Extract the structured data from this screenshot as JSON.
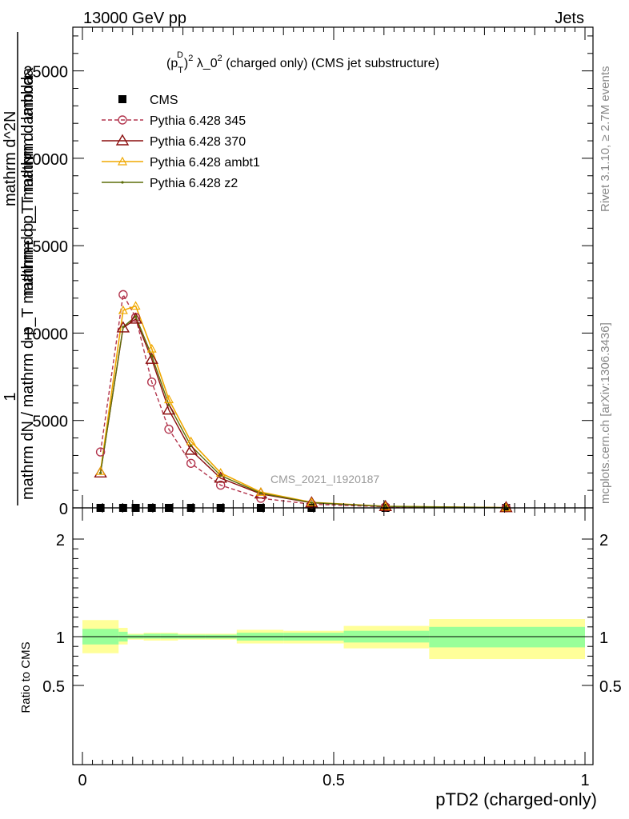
{
  "header": {
    "left": "13000 GeV pp",
    "right": "Jets"
  },
  "side_labels": {
    "rivet": "Rivet 3.1.10, ≥ 2.7M events",
    "mcplots": "mcplots.cern.ch [arXiv:1306.3436]"
  },
  "colors": {
    "cms": "#000000",
    "p345": "#b3364e",
    "p370": "#8b0f0f",
    "ambt1": "#f0a800",
    "z2": "#5d6e0a",
    "band_inner": "#99ff99",
    "band_outer": "#ffff99"
  },
  "chart_data": [
    {
      "type": "line",
      "title": "(p_T^D)^2 λ_0^2 (charged only) (CMS jet substructure)",
      "title_parts": {
        "p": "(p",
        "sub": "T",
        "sup1": "D",
        "close": ")",
        "sup2": "2",
        "lam": " λ_0",
        "sup3": "2",
        "rest": " (charged only) (CMS jet substructure)"
      },
      "ylabel_lines": [
        "1",
        "mathrm dN / mathrm d p_T mathrm d p_T mathrm d lambda",
        "mathrm d^2N",
        "mathrm d p_T mathrm d lambda"
      ],
      "watermark": "CMS_2021_I1920187",
      "xlim": [
        0,
        1
      ],
      "ylim": [
        0,
        27500
      ],
      "yticks": [
        0,
        5000,
        10000,
        15000,
        20000,
        25000
      ],
      "ytick_labels": [
        "0",
        "5000",
        "10000",
        "15000",
        "20000",
        "25000"
      ],
      "legend_position": "top-left",
      "series": [
        {
          "name": "CMS",
          "style": "square",
          "x": [
            0.036,
            0.081,
            0.106,
            0.138,
            0.172,
            0.216,
            0.275,
            0.355,
            0.456,
            0.603,
            0.843
          ],
          "y": [
            0,
            0,
            0,
            0,
            0,
            0,
            0,
            0,
            0,
            0,
            0
          ]
        },
        {
          "name": "Pythia 6.428 345",
          "style": "circle-dashed",
          "x": [
            0.036,
            0.081,
            0.106,
            0.138,
            0.172,
            0.216,
            0.275,
            0.355,
            0.456,
            0.603,
            0.843
          ],
          "y": [
            3200,
            12200,
            10900,
            7200,
            4500,
            2550,
            1300,
            550,
            210,
            60,
            10
          ]
        },
        {
          "name": "Pythia 6.428 370",
          "style": "triangle-open",
          "x": [
            0.036,
            0.081,
            0.106,
            0.138,
            0.172,
            0.216,
            0.275,
            0.355,
            0.456,
            0.603,
            0.843
          ],
          "y": [
            2000,
            10300,
            10800,
            8500,
            5600,
            3300,
            1700,
            800,
            290,
            80,
            15
          ]
        },
        {
          "name": "Pythia 6.428 ambt1",
          "style": "triangle-small",
          "x": [
            0.036,
            0.081,
            0.106,
            0.138,
            0.172,
            0.216,
            0.275,
            0.355,
            0.456,
            0.603,
            0.843
          ],
          "y": [
            2100,
            11300,
            11550,
            9100,
            6200,
            3800,
            2000,
            900,
            320,
            90,
            15
          ]
        },
        {
          "name": "Pythia 6.428 z2",
          "style": "dot",
          "x": [
            0.036,
            0.081,
            0.106,
            0.138,
            0.172,
            0.216,
            0.275,
            0.355,
            0.456,
            0.603,
            0.843
          ],
          "y": [
            2000,
            10350,
            10950,
            8700,
            5900,
            3550,
            1850,
            840,
            300,
            85,
            15
          ]
        }
      ]
    },
    {
      "type": "area",
      "ylabel": "Ratio to CMS",
      "xlabel": "pTD2 (charged-only)",
      "xlim": [
        0,
        1
      ],
      "ylim": [
        0.37,
        2.25
      ],
      "yticks": [
        0.5,
        1,
        2
      ],
      "ytick_labels": [
        "0.5",
        "1",
        "2"
      ],
      "xticks": [
        0,
        0.5,
        1
      ],
      "xtick_labels": [
        "0",
        "0.5",
        "1"
      ],
      "bins": [
        {
          "lo": 0.0,
          "hi": 0.072,
          "inner": [
            0.92,
            1.08
          ],
          "outer": [
            0.83,
            1.17
          ]
        },
        {
          "lo": 0.072,
          "hi": 0.09,
          "inner": [
            0.95,
            1.05
          ],
          "outer": [
            0.92,
            1.09
          ]
        },
        {
          "lo": 0.09,
          "hi": 0.122,
          "inner": [
            0.98,
            1.02
          ],
          "outer": [
            0.97,
            1.03
          ]
        },
        {
          "lo": 0.122,
          "hi": 0.155,
          "inner": [
            0.98,
            1.03
          ],
          "outer": [
            0.96,
            1.04
          ]
        },
        {
          "lo": 0.155,
          "hi": 0.19,
          "inner": [
            0.98,
            1.03
          ],
          "outer": [
            0.96,
            1.04
          ]
        },
        {
          "lo": 0.19,
          "hi": 0.245,
          "inner": [
            0.98,
            1.02
          ],
          "outer": [
            0.97,
            1.03
          ]
        },
        {
          "lo": 0.245,
          "hi": 0.307,
          "inner": [
            0.98,
            1.02
          ],
          "outer": [
            0.97,
            1.03
          ]
        },
        {
          "lo": 0.307,
          "hi": 0.4,
          "inner": [
            0.96,
            1.04
          ],
          "outer": [
            0.93,
            1.07
          ]
        },
        {
          "lo": 0.4,
          "hi": 0.52,
          "inner": [
            0.96,
            1.04
          ],
          "outer": [
            0.93,
            1.06
          ]
        },
        {
          "lo": 0.52,
          "hi": 0.69,
          "inner": [
            0.94,
            1.06
          ],
          "outer": [
            0.88,
            1.11
          ]
        },
        {
          "lo": 0.69,
          "hi": 1.0,
          "inner": [
            0.89,
            1.1
          ],
          "outer": [
            0.77,
            1.18
          ]
        }
      ]
    }
  ]
}
